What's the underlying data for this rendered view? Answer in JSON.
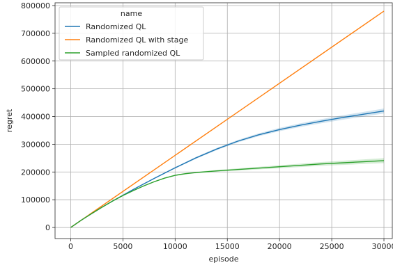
{
  "chart_data": {
    "type": "line",
    "xlabel": "episode",
    "ylabel": "regret",
    "xlim": [
      -1500,
      30800
    ],
    "ylim": [
      -40000,
      810000
    ],
    "xticks": [
      0,
      5000,
      10000,
      15000,
      20000,
      25000,
      30000
    ],
    "yticks": [
      0,
      100000,
      200000,
      300000,
      400000,
      500000,
      600000,
      700000,
      800000
    ],
    "grid": true,
    "legend": {
      "title": "name",
      "placement": "top-left"
    },
    "series": [
      {
        "name": "Randomized QL",
        "color": "#1f77b4",
        "x": [
          0,
          1000,
          2000,
          3000,
          4000,
          5000,
          6000,
          7000,
          8000,
          9000,
          10000,
          12000,
          14000,
          16000,
          18000,
          20000,
          22000,
          24000,
          26000,
          28000,
          30000
        ],
        "y": [
          0,
          26000,
          50000,
          73000,
          95000,
          116000,
          137000,
          157000,
          177000,
          196000,
          215000,
          251000,
          283000,
          311000,
          334000,
          353000,
          369000,
          383000,
          396000,
          408000,
          420000
        ],
        "band": [
          0,
          200,
          500,
          700,
          900,
          1100,
          1400,
          1700,
          2000,
          2300,
          2600,
          3200,
          3800,
          4500,
          5200,
          6000,
          6700,
          7400,
          8000,
          8500,
          9000
        ]
      },
      {
        "name": "Randomized QL with stage",
        "color": "#ff7f0e",
        "x": [
          0,
          30000
        ],
        "y": [
          0,
          780000
        ],
        "band": [
          0,
          1000
        ]
      },
      {
        "name": "Sampled randomized QL",
        "color": "#2ca02c",
        "x": [
          0,
          1000,
          2000,
          3000,
          4000,
          5000,
          6000,
          7000,
          8000,
          9000,
          10000,
          11000,
          12000,
          14000,
          16000,
          18000,
          20000,
          22000,
          24000,
          26000,
          28000,
          30000
        ],
        "y": [
          0,
          26000,
          50000,
          73000,
          95000,
          115000,
          133000,
          150000,
          165000,
          178000,
          188000,
          194000,
          198000,
          204000,
          209000,
          214000,
          219000,
          224000,
          229000,
          233000,
          237000,
          241000
        ],
        "band": [
          0,
          200,
          500,
          700,
          900,
          1100,
          1300,
          1500,
          1700,
          1900,
          2100,
          2400,
          2700,
          3300,
          3900,
          4600,
          5300,
          6000,
          6800,
          7500,
          8200,
          9000
        ]
      }
    ]
  }
}
